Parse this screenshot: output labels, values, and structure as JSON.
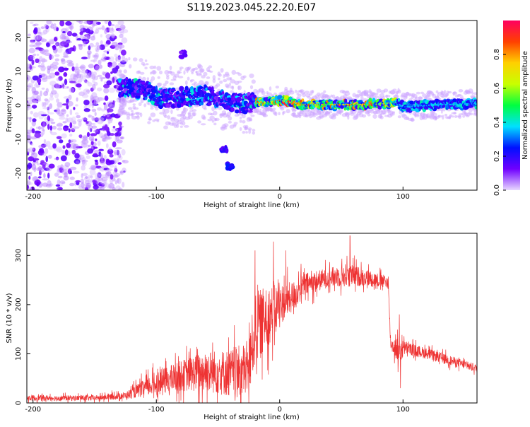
{
  "title": "S119.2023.045.22.20.E07",
  "chart_data": [
    {
      "type": "heatmap",
      "xlabel": "Height of straight line (km)",
      "ylabel": "Frequency (Hz)",
      "xlim": [
        -205,
        160
      ],
      "ylim": [
        -25,
        25
      ],
      "x_ticks": [
        {
          "value": -200,
          "label": "-200"
        },
        {
          "value": -100,
          "label": "-100"
        },
        {
          "value": 0,
          "label": "0"
        },
        {
          "value": 100,
          "label": "100"
        }
      ],
      "y_ticks": [
        {
          "value": -20,
          "label": "-20"
        },
        {
          "value": -10,
          "label": "-10"
        },
        {
          "value": 0,
          "label": "0"
        },
        {
          "value": 10,
          "label": "10"
        },
        {
          "value": 20,
          "label": "20"
        }
      ],
      "colorbar": {
        "label": "Normalized spectral amplitude",
        "range": [
          0.0,
          1.0
        ],
        "ticks": [
          {
            "value": 0.0,
            "label": "0.0"
          },
          {
            "value": 0.2,
            "label": "0.2"
          },
          {
            "value": 0.4,
            "label": "0.4"
          },
          {
            "value": 0.6,
            "label": "0.6"
          },
          {
            "value": 0.8,
            "label": "0.8"
          }
        ],
        "colormap": [
          "#e8d8ff",
          "#7000ff",
          "#0010ff",
          "#00e0ff",
          "#00ff40",
          "#c8ff00",
          "#ffd000",
          "#ff4000",
          "#ff0060"
        ]
      },
      "ridge_centerline": [
        {
          "x": -130,
          "f": 5.5
        },
        {
          "x": -110,
          "f": 4.5
        },
        {
          "x": -95,
          "f": 2.0
        },
        {
          "x": -80,
          "f": 2.5
        },
        {
          "x": -60,
          "f": 3.0
        },
        {
          "x": -45,
          "f": 1.5
        },
        {
          "x": -30,
          "f": 0.5
        },
        {
          "x": -15,
          "f": 0.8
        },
        {
          "x": 0,
          "f": 1.5
        },
        {
          "x": 20,
          "f": 0.2
        },
        {
          "x": 50,
          "f": 0.2
        },
        {
          "x": 80,
          "f": 0.3
        },
        {
          "x": 95,
          "f": 0.8
        },
        {
          "x": 100,
          "f": -0.5
        },
        {
          "x": 130,
          "f": 0.2
        },
        {
          "x": 160,
          "f": 0.5
        }
      ],
      "secondary_features": [
        {
          "x": -78,
          "f": 15,
          "amplitude": 0.15
        },
        {
          "x": -45,
          "f": -13,
          "amplitude": 0.2
        },
        {
          "x": -40,
          "f": -18,
          "amplitude": 0.25
        }
      ],
      "noise_region_x": [
        -205,
        -125
      ]
    },
    {
      "type": "line",
      "xlabel": "Height of straight line (km)",
      "ylabel": "SNR (10 * v/v)",
      "xlim": [
        -205,
        160
      ],
      "ylim": [
        0,
        345
      ],
      "color": "#ee3333",
      "x_ticks": [
        {
          "value": -200,
          "label": "-200"
        },
        {
          "value": -100,
          "label": "-100"
        },
        {
          "value": 0,
          "label": "0"
        },
        {
          "value": 100,
          "label": "100"
        }
      ],
      "y_ticks": [
        {
          "value": 0,
          "label": "0"
        },
        {
          "value": 100,
          "label": "100"
        },
        {
          "value": 200,
          "label": "200"
        },
        {
          "value": 300,
          "label": "300"
        }
      ],
      "envelope": [
        {
          "x": -205,
          "base": 10,
          "spread": 8
        },
        {
          "x": -150,
          "base": 10,
          "spread": 8
        },
        {
          "x": -125,
          "base": 15,
          "spread": 10
        },
        {
          "x": -100,
          "base": 40,
          "spread": 35
        },
        {
          "x": -80,
          "base": 55,
          "spread": 45
        },
        {
          "x": -60,
          "base": 65,
          "spread": 60
        },
        {
          "x": -40,
          "base": 60,
          "spread": 70
        },
        {
          "x": -25,
          "base": 70,
          "spread": 80
        },
        {
          "x": -20,
          "base": 150,
          "spread": 110
        },
        {
          "x": -10,
          "base": 175,
          "spread": 90
        },
        {
          "x": 0,
          "base": 200,
          "spread": 60
        },
        {
          "x": 10,
          "base": 215,
          "spread": 45
        },
        {
          "x": 20,
          "base": 240,
          "spread": 35
        },
        {
          "x": 40,
          "base": 255,
          "spread": 28
        },
        {
          "x": 55,
          "base": 260,
          "spread": 35
        },
        {
          "x": 70,
          "base": 255,
          "spread": 25
        },
        {
          "x": 88,
          "base": 245,
          "spread": 18
        },
        {
          "x": 90,
          "base": 120,
          "spread": 18
        },
        {
          "x": 97,
          "base": 105,
          "spread": 40
        },
        {
          "x": 102,
          "base": 112,
          "spread": 18
        },
        {
          "x": 120,
          "base": 100,
          "spread": 16
        },
        {
          "x": 140,
          "base": 85,
          "spread": 14
        },
        {
          "x": 160,
          "base": 70,
          "spread": 12
        }
      ],
      "peaks": [
        {
          "x": -20,
          "y": 310
        },
        {
          "x": -5,
          "y": 328
        },
        {
          "x": 5,
          "y": 310
        },
        {
          "x": 57,
          "y": 340
        },
        {
          "x": 97,
          "y": 180
        },
        {
          "x": 98,
          "y": 30
        }
      ]
    }
  ]
}
